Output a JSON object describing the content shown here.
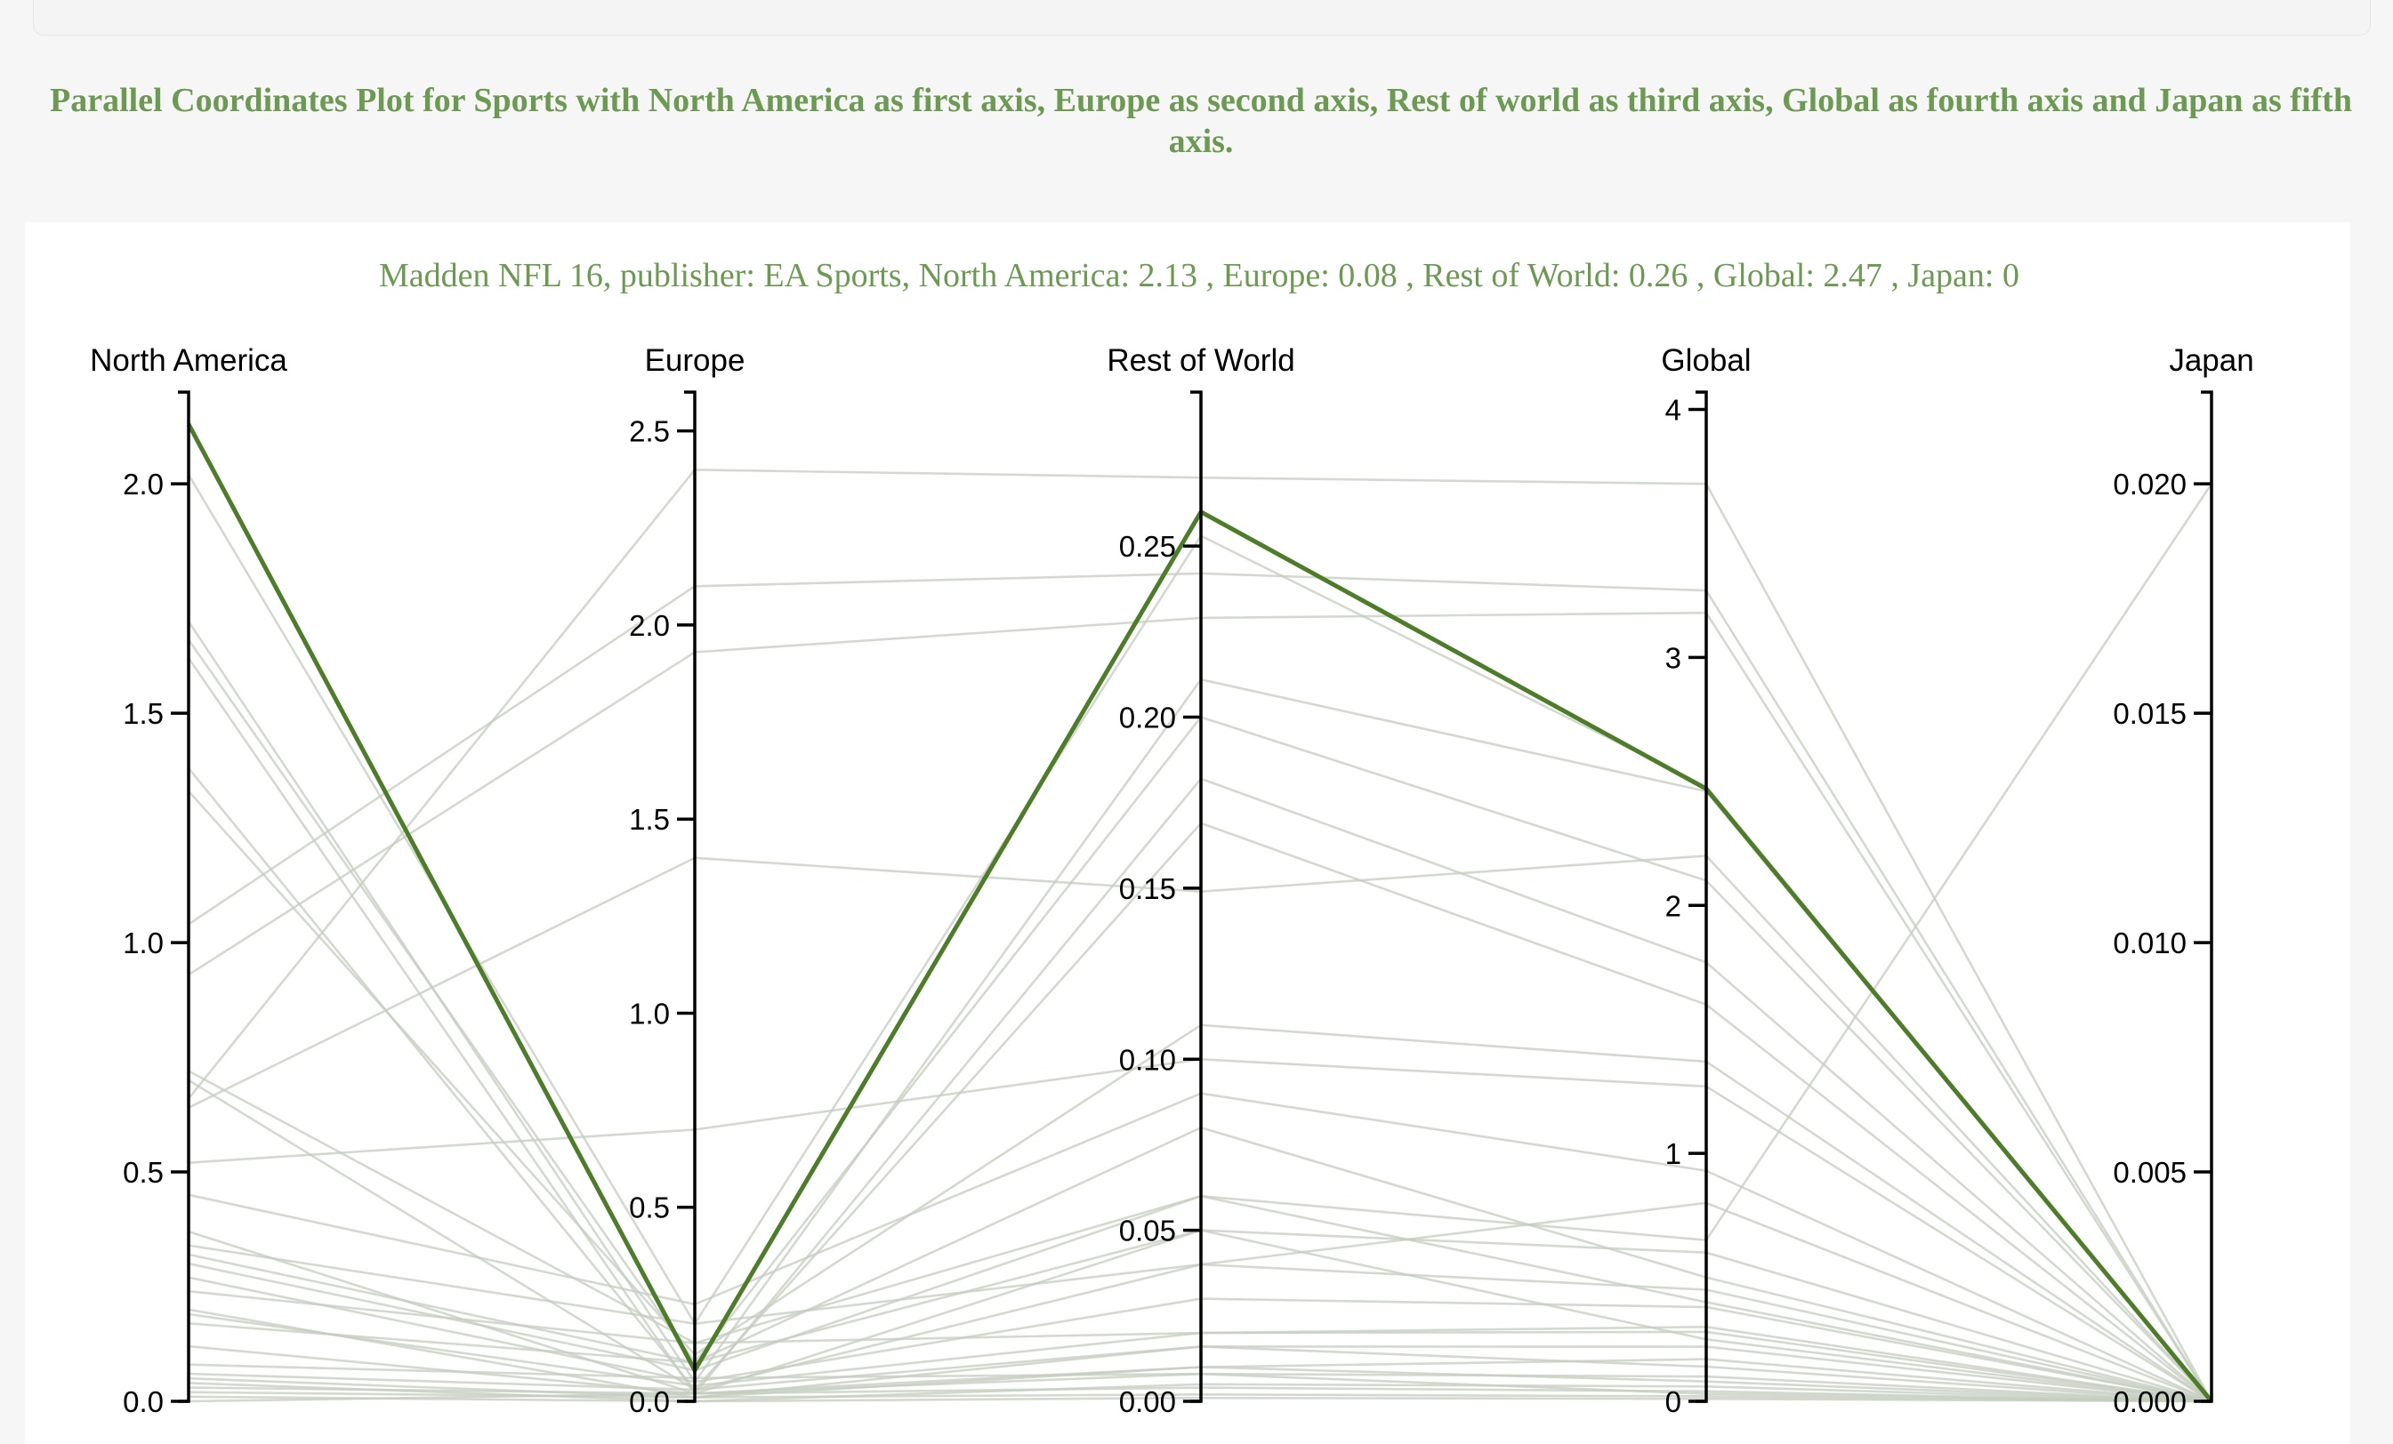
{
  "page": {
    "title": "Parallel Coordinates Plot for Sports with North America as first axis, Europe as second axis, Rest of world as third axis, Global as fourth axis and Japan as fifth axis."
  },
  "colors": {
    "accent": "#4e7d2a",
    "title": "#6c9a52",
    "background_lines": "#c4ccbf",
    "axis": "#000000"
  },
  "chart_data": {
    "type": "parallel_coordinates",
    "caption": "Madden NFL 16, publisher: EA Sports, North America: 2.13 , Europe: 0.08 , Rest of World: 0.26 , Global: 2.47 , Japan: 0",
    "axes": [
      {
        "name": "North America",
        "domain": [
          0,
          2.2
        ],
        "ticks": [
          "0.0",
          "0.5",
          "1.0",
          "1.5",
          "2.0"
        ],
        "tick_values": [
          0,
          0.5,
          1.0,
          1.5,
          2.0
        ]
      },
      {
        "name": "Europe",
        "domain": [
          0,
          2.6
        ],
        "ticks": [
          "0.0",
          "0.5",
          "1.0",
          "1.5",
          "2.0",
          "2.5"
        ],
        "tick_values": [
          0,
          0.5,
          1.0,
          1.5,
          2.0,
          2.5
        ]
      },
      {
        "name": "Rest of World",
        "domain": [
          0,
          0.295
        ],
        "ticks": [
          "0.00",
          "0.05",
          "0.10",
          "0.15",
          "0.20",
          "0.25"
        ],
        "tick_values": [
          0,
          0.05,
          0.1,
          0.15,
          0.2,
          0.25
        ]
      },
      {
        "name": "Global",
        "domain": [
          0,
          4.07
        ],
        "ticks": [
          "0",
          "1",
          "2",
          "3",
          "4"
        ],
        "tick_values": [
          0,
          1,
          2,
          3,
          4
        ]
      },
      {
        "name": "Japan",
        "domain": [
          0,
          0.022
        ],
        "ticks": [
          "0.000",
          "0.005",
          "0.010",
          "0.015",
          "0.020"
        ],
        "tick_values": [
          0,
          0.005,
          0.01,
          0.015,
          0.02
        ]
      }
    ],
    "highlighted": {
      "name": "Madden NFL 16",
      "publisher": "EA Sports",
      "values": [
        2.13,
        0.08,
        0.26,
        2.47,
        0
      ]
    },
    "series": [
      {
        "values": [
          0.66,
          2.4,
          0.27,
          3.7,
          0
        ]
      },
      {
        "values": [
          1.04,
          2.1,
          0.242,
          3.27,
          0
        ]
      },
      {
        "values": [
          0.93,
          1.93,
          0.229,
          3.18,
          0
        ]
      },
      {
        "values": [
          2.02,
          0.2,
          0.253,
          2.48,
          0
        ]
      },
      {
        "values": [
          1.7,
          0.05,
          0.211,
          2.46,
          0
        ]
      },
      {
        "values": [
          1.66,
          0.1,
          0.2,
          2.1,
          0
        ]
      },
      {
        "values": [
          1.62,
          0.02,
          0.182,
          1.77,
          0
        ]
      },
      {
        "values": [
          1.38,
          0.03,
          0.169,
          1.6,
          0
        ]
      },
      {
        "values": [
          0.64,
          1.4,
          0.149,
          2.2,
          0
        ]
      },
      {
        "values": [
          1.33,
          0.12,
          0.11,
          1.37,
          0
        ]
      },
      {
        "values": [
          0.52,
          0.7,
          0.1,
          1.27,
          0
        ]
      },
      {
        "values": [
          0.45,
          0.25,
          0.09,
          0.93,
          0
        ]
      },
      {
        "values": [
          0.72,
          0.15,
          0.06,
          0.65,
          0.02
        ]
      },
      {
        "values": [
          0.37,
          0.02,
          0.05,
          0.6,
          0
        ]
      },
      {
        "values": [
          0.34,
          0.2,
          0.04,
          0.45,
          0
        ]
      },
      {
        "values": [
          0.3,
          0.08,
          0.06,
          0.4,
          0
        ]
      },
      {
        "values": [
          0.27,
          0.05,
          0.03,
          0.38,
          0
        ]
      },
      {
        "values": [
          0.24,
          0.15,
          0.02,
          0.3,
          0
        ]
      },
      {
        "values": [
          0.2,
          0.01,
          0.016,
          0.22,
          0
        ]
      },
      {
        "values": [
          0.17,
          0.1,
          0.05,
          0.25,
          0
        ]
      },
      {
        "values": [
          0.12,
          0.02,
          0.01,
          0.17,
          0
        ]
      },
      {
        "values": [
          0.08,
          0.06,
          0.008,
          0.1,
          0
        ]
      },
      {
        "values": [
          0.05,
          0.01,
          0.01,
          0.08,
          0
        ]
      },
      {
        "values": [
          0.04,
          0.0,
          0.005,
          0.06,
          0
        ]
      },
      {
        "values": [
          0.03,
          0.02,
          0.004,
          0.04,
          0
        ]
      },
      {
        "values": [
          0.02,
          0.01,
          0.002,
          0.02,
          0
        ]
      },
      {
        "values": [
          0.01,
          0.0,
          0.001,
          0.01,
          0
        ]
      },
      {
        "values": [
          0.32,
          0.1,
          0.08,
          0.5,
          0
        ]
      },
      {
        "values": [
          0.19,
          0.04,
          0.02,
          0.28,
          0
        ]
      },
      {
        "values": [
          0.7,
          0.03,
          0.04,
          0.8,
          0
        ]
      },
      {
        "values": [
          0.06,
          0.03,
          0.016,
          0.14,
          0
        ]
      },
      {
        "values": [
          0.0,
          0.02,
          0.008,
          0.03,
          0
        ]
      }
    ]
  }
}
